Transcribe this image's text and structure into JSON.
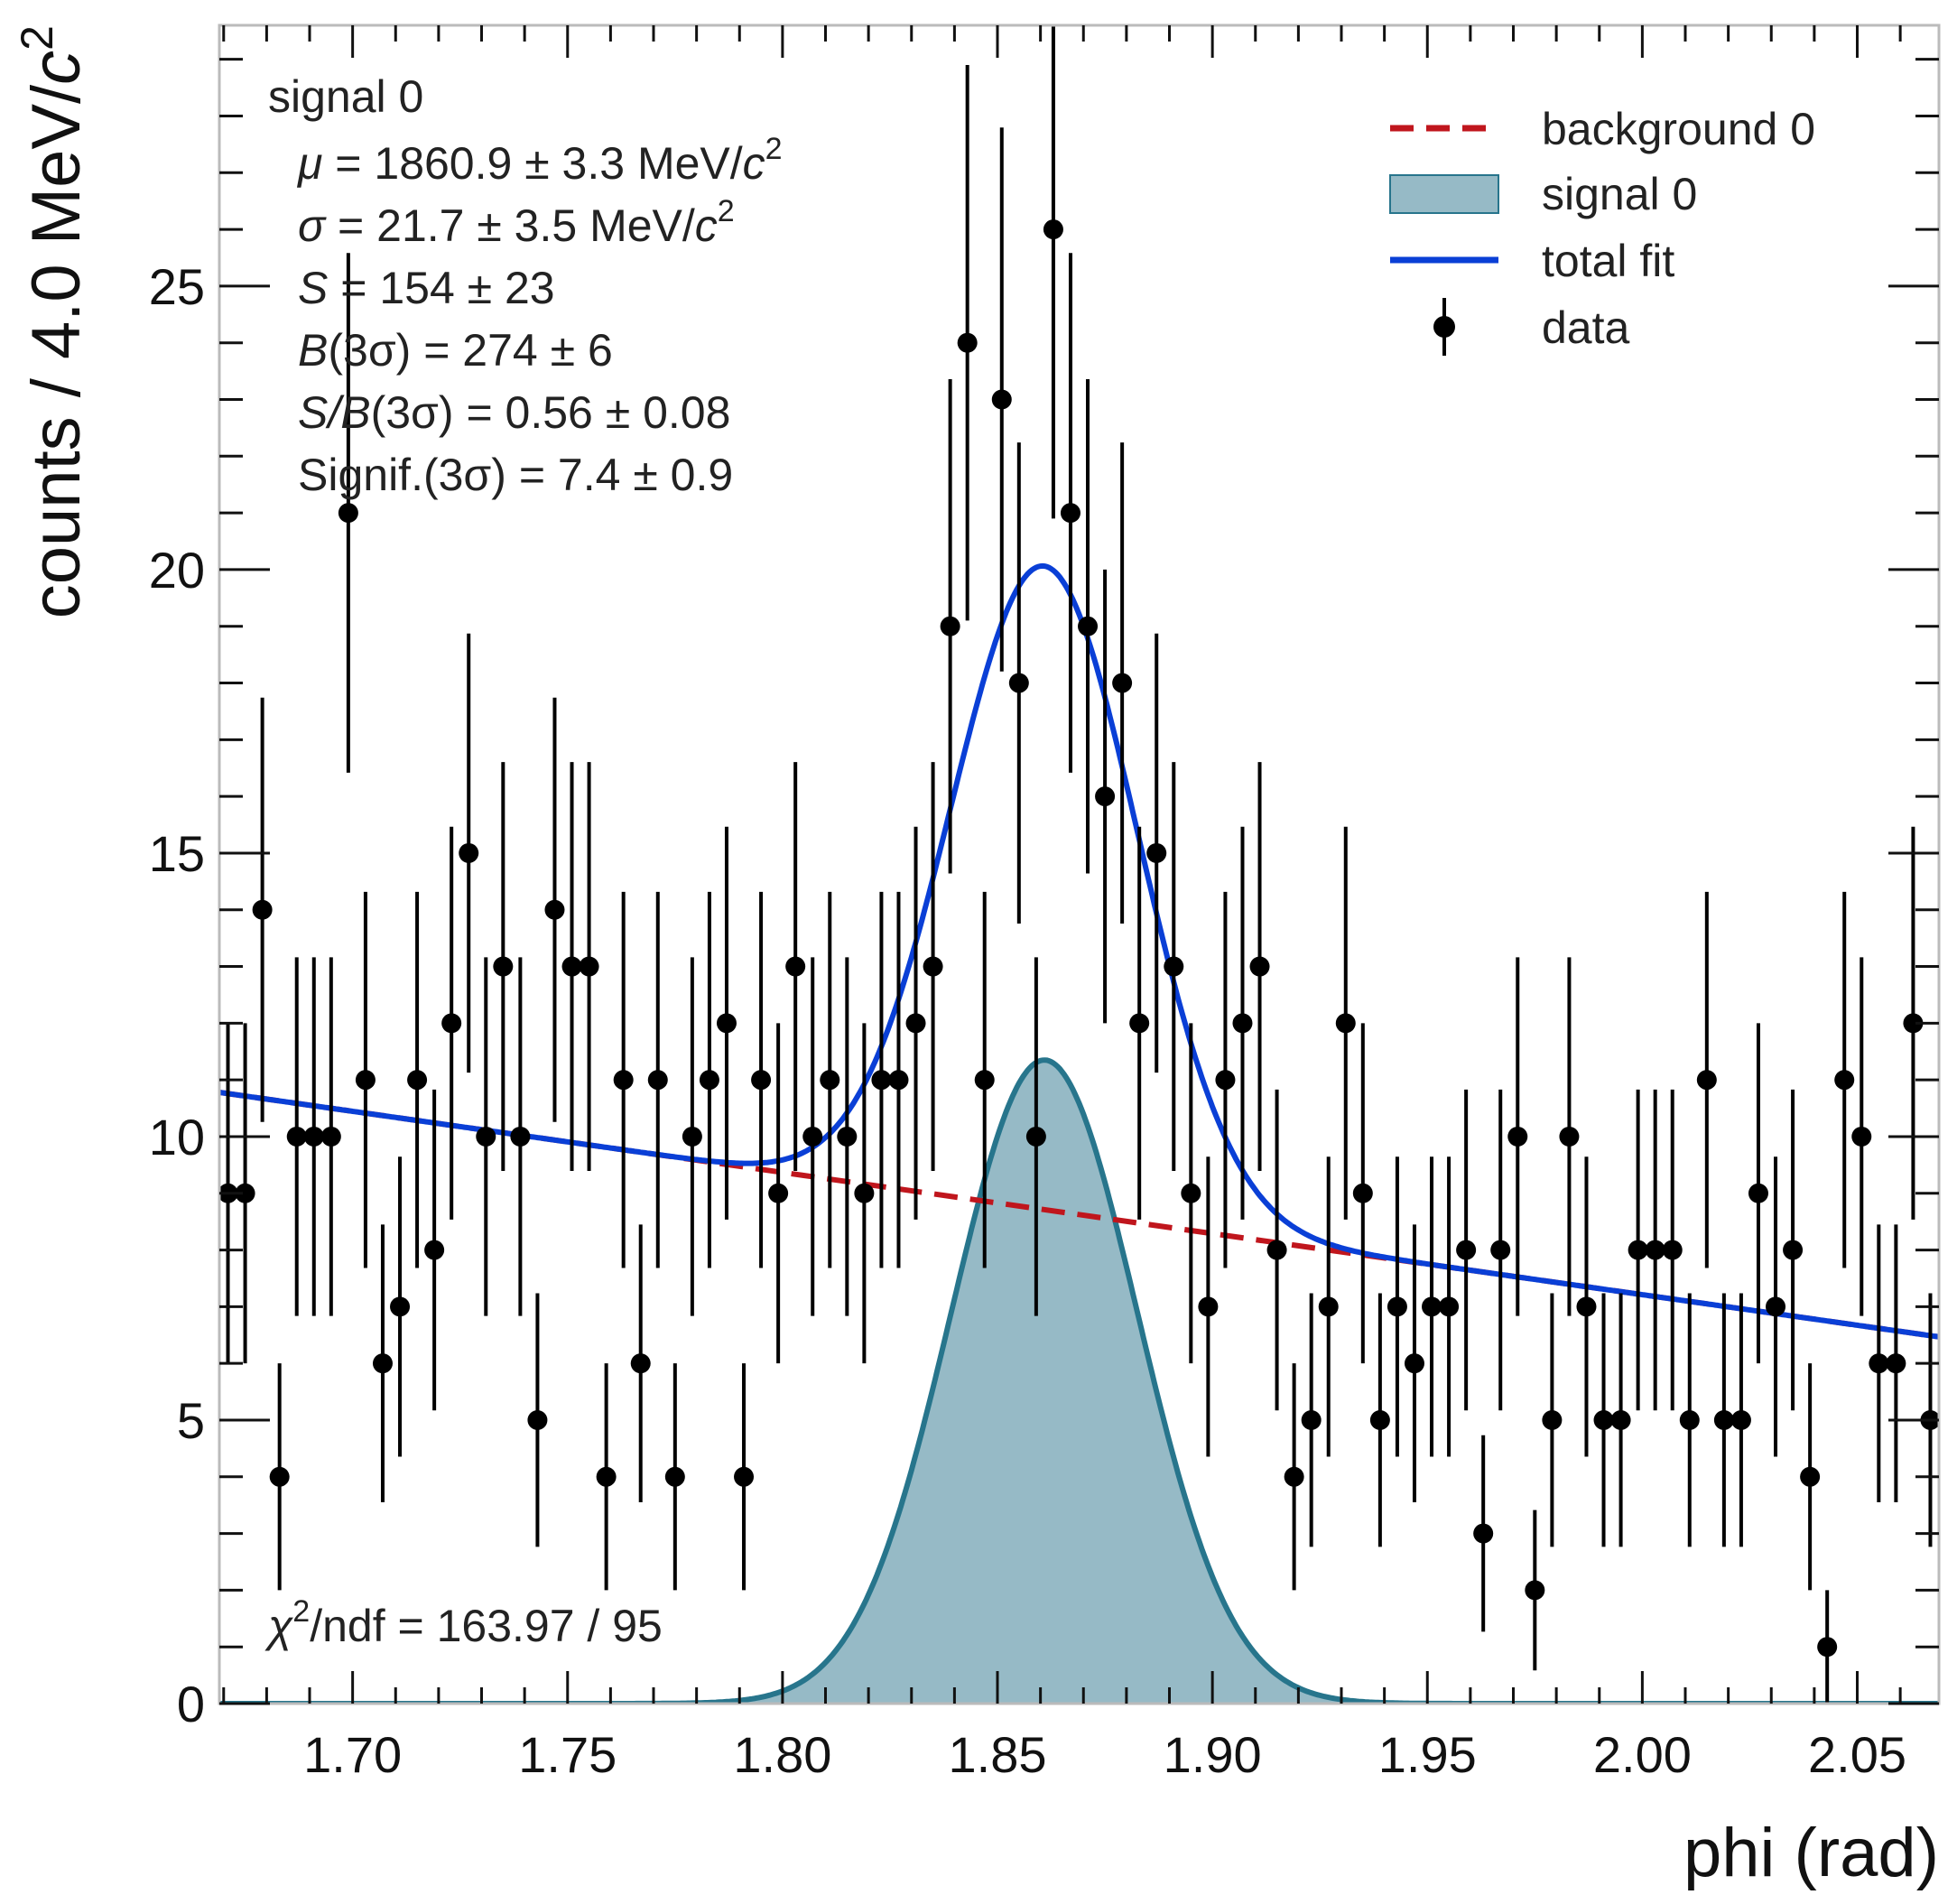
{
  "chart_data": {
    "type": "scatter",
    "xlabel": "phi (rad)",
    "ylabel": "counts / 4.0 MeV/",
    "ylabel_sym": "c",
    "ylabel_sup": "2",
    "xlim": [
      1.669,
      2.069
    ],
    "ylim": [
      0,
      29.6
    ],
    "x_ticks": [
      1.7,
      1.75,
      1.8,
      1.85,
      1.9,
      1.95,
      2.0,
      2.05
    ],
    "x_tick_labels": [
      "1.70",
      "1.75",
      "1.80",
      "1.85",
      "1.90",
      "1.95",
      "2.00",
      "2.05"
    ],
    "y_ticks": [
      0,
      5,
      10,
      15,
      20,
      25
    ],
    "y_tick_labels": [
      "0",
      "5",
      "10",
      "15",
      "20",
      "25"
    ],
    "grid": false,
    "legend_position": "top-right",
    "legend": [
      {
        "label": "background 0",
        "style": "dashed-line",
        "color": "#c0161d"
      },
      {
        "label": "signal 0",
        "style": "filled-area",
        "color": "#96bac6"
      },
      {
        "label": "total fit",
        "style": "line",
        "color": "#0a3fd6"
      },
      {
        "label": "data",
        "style": "errorbar-marker",
        "color": "#000000"
      }
    ],
    "colors": {
      "background": "#c0161d",
      "signal_fill": "#96bac6",
      "signal_line": "#27758c",
      "total": "#0a3fd6",
      "data": "#000000"
    },
    "info_box": {
      "title": "signal 0",
      "lines": [
        {
          "sym": "μ",
          "text": " = 1860.9 ± 3.3 MeV/",
          "sym2": "c",
          "sup": "2"
        },
        {
          "sym": "σ",
          "text": " = 21.7 ± 3.5 MeV/",
          "sym2": "c",
          "sup": "2"
        },
        {
          "sym": "S",
          "text": " = 154 ± 23",
          "sym2": "",
          "sup": ""
        },
        {
          "sym": "B",
          "text": "(3σ) = 274 ± 6",
          "sym2": "",
          "sup": ""
        },
        {
          "sym": "S/B",
          "text": "(3σ) = 0.56 ± 0.08",
          "sym2": "",
          "sup": ""
        },
        {
          "sym": "",
          "text": "Signif.(3σ) = 7.4 ± 0.9",
          "sym2": "",
          "sup": ""
        }
      ]
    },
    "chi2": {
      "sym": "χ",
      "sup": "2",
      "text": "/ndf = 163.97 / 95"
    },
    "fit": {
      "background_slope": -10.78,
      "background_at_start": 10.78,
      "signal_mean": 1.8609,
      "signal_sigma": 0.0217,
      "signal_peak": 11.35
    },
    "series": [
      {
        "name": "data",
        "x": [
          1.671,
          1.675,
          1.679,
          1.683,
          1.687,
          1.691,
          1.695,
          1.699,
          1.703,
          1.707,
          1.711,
          1.715,
          1.719,
          1.723,
          1.727,
          1.731,
          1.735,
          1.739,
          1.743,
          1.747,
          1.751,
          1.755,
          1.759,
          1.763,
          1.767,
          1.771,
          1.775,
          1.779,
          1.783,
          1.787,
          1.791,
          1.795,
          1.799,
          1.803,
          1.807,
          1.811,
          1.815,
          1.819,
          1.823,
          1.827,
          1.831,
          1.835,
          1.839,
          1.843,
          1.847,
          1.851,
          1.855,
          1.859,
          1.863,
          1.867,
          1.871,
          1.875,
          1.879,
          1.883,
          1.887,
          1.891,
          1.895,
          1.899,
          1.903,
          1.907,
          1.911,
          1.915,
          1.919,
          1.923,
          1.927,
          1.931,
          1.935,
          1.939,
          1.943,
          1.947,
          1.951,
          1.955,
          1.959,
          1.963,
          1.967,
          1.971,
          1.975,
          1.979,
          1.983,
          1.987,
          1.991,
          1.995,
          1.999,
          2.003,
          2.007,
          2.011,
          2.015,
          2.019,
          2.023,
          2.027,
          2.031,
          2.035,
          2.039,
          2.043,
          2.047,
          2.051,
          2.055,
          2.059,
          2.063,
          2.067
        ],
        "y": [
          9,
          9,
          14,
          4,
          10,
          10,
          10,
          21,
          11,
          6,
          7,
          11,
          8,
          12,
          15,
          10,
          13,
          10,
          5,
          14,
          13,
          13,
          4,
          11,
          6,
          11,
          4,
          10,
          11,
          12,
          4,
          11,
          9,
          13,
          10,
          11,
          10,
          9,
          11,
          11,
          12,
          13,
          19,
          24,
          11,
          23,
          18,
          10,
          26,
          21,
          19,
          16,
          18,
          12,
          15,
          13,
          9,
          7,
          11,
          12,
          13,
          8,
          4,
          5,
          7,
          12,
          9,
          5,
          7,
          6,
          7,
          7,
          8,
          3,
          8,
          10,
          2,
          5,
          10,
          7,
          5,
          5,
          8,
          8,
          8,
          5,
          11,
          5,
          5,
          9,
          7,
          8,
          4,
          1,
          11,
          10,
          6,
          6,
          12,
          5
        ]
      }
    ]
  }
}
